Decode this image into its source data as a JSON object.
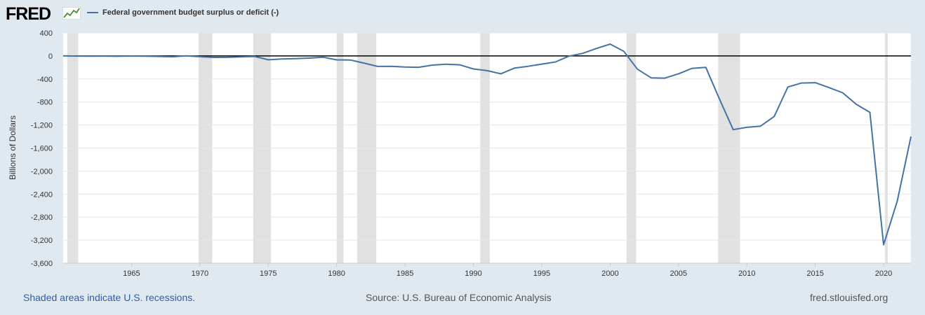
{
  "header": {
    "logo_text": "FRED",
    "legend_label": "Federal government budget surplus or deficit (-)"
  },
  "footer": {
    "recessions_note": "Shaded areas indicate U.S. recessions.",
    "source": "Source: U.S. Bureau of Economic Analysis",
    "site": "fred.stlouisfed.org"
  },
  "colors": {
    "series": "#4572a7",
    "recession": "#e1e1e1",
    "zero_line": "#000000",
    "background": "#e1e9f0"
  },
  "chart_data": {
    "type": "line",
    "title": "",
    "ylabel": "Billions of Dollars",
    "xlabel": "",
    "ylim": [
      -3600,
      400
    ],
    "xlim": [
      1960,
      2022
    ],
    "yticks": [
      400,
      0,
      -400,
      -800,
      -1200,
      -1600,
      -2000,
      -2400,
      -2800,
      -3200,
      -3600
    ],
    "ytick_labels": [
      "400",
      "0",
      "-400",
      "-800",
      "-1,200",
      "-1,600",
      "-2,000",
      "-2,400",
      "-2,800",
      "-3,200",
      "-3,600"
    ],
    "xticks": [
      1965,
      1970,
      1975,
      1980,
      1985,
      1990,
      1995,
      2000,
      2005,
      2010,
      2015,
      2020
    ],
    "grid": "horizontal",
    "recessions": [
      [
        1960.3,
        1961.1
      ],
      [
        1969.9,
        1970.9
      ],
      [
        1973.9,
        1975.2
      ],
      [
        1980.0,
        1980.5
      ],
      [
        1981.5,
        1982.9
      ],
      [
        1990.5,
        1991.2
      ],
      [
        2001.2,
        2001.9
      ],
      [
        2007.9,
        2009.5
      ],
      [
        2020.1,
        2020.3
      ]
    ],
    "series": [
      {
        "name": "Federal government budget surplus or deficit (-)",
        "x": [
          1960,
          1961,
          1962,
          1963,
          1964,
          1965,
          1966,
          1967,
          1968,
          1969,
          1970,
          1971,
          1972,
          1973,
          1974,
          1975,
          1976,
          1977,
          1978,
          1979,
          1980,
          1981,
          1982,
          1983,
          1984,
          1985,
          1986,
          1987,
          1988,
          1989,
          1990,
          1991,
          1992,
          1993,
          1994,
          1995,
          1996,
          1997,
          1998,
          1999,
          2000,
          2001,
          2002,
          2003,
          2004,
          2005,
          2006,
          2007,
          2008,
          2009,
          2010,
          2011,
          2012,
          2013,
          2014,
          2015,
          2016,
          2017,
          2018,
          2019,
          2020,
          2021,
          2022
        ],
        "values": [
          1,
          -2,
          -4,
          -3,
          -6,
          -1,
          -4,
          -9,
          -14,
          2,
          -13,
          -26,
          -24,
          -16,
          -9,
          -67,
          -52,
          -48,
          -38,
          -22,
          -68,
          -71,
          -124,
          -182,
          -180,
          -192,
          -197,
          -159,
          -144,
          -155,
          -226,
          -255,
          -310,
          -212,
          -180,
          -142,
          -105,
          -3,
          45,
          130,
          205,
          80,
          -230,
          -380,
          -385,
          -310,
          -215,
          -200,
          -750,
          -1280,
          -1240,
          -1220,
          -1050,
          -540,
          -470,
          -465,
          -550,
          -640,
          -840,
          -980,
          -3280,
          -2520,
          -1400
        ]
      }
    ]
  }
}
